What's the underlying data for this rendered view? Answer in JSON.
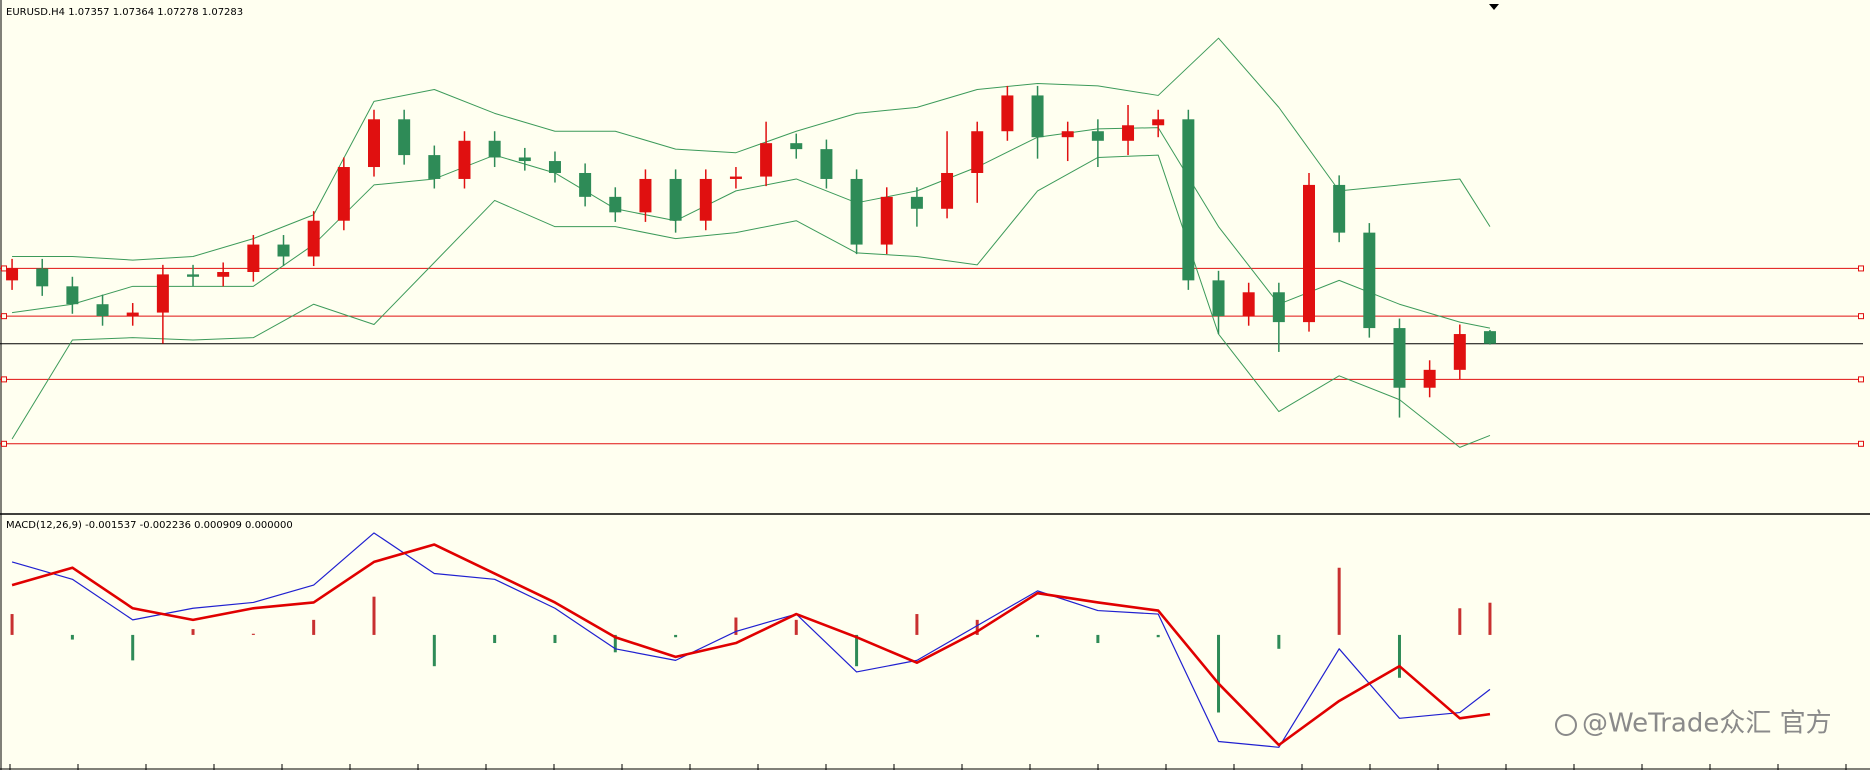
{
  "chart_data": [
    {
      "type": "candlestick",
      "title": "EURUSD.H4  1.07357 1.07364 1.07278 1.07283",
      "xlim": [
        -0.4,
        61.6
      ],
      "ylim": [
        1.0629,
        1.093
      ],
      "bull_color": "#e01010",
      "bear_color": "#2e8b57",
      "open": [
        1.07655,
        1.07725,
        1.0762,
        1.07515,
        1.07445,
        1.07466,
        1.0769,
        1.07676,
        1.07704,
        1.07865,
        1.07795,
        1.08005,
        1.0832,
        1.086,
        1.0839,
        1.0825,
        1.08474,
        1.08376,
        1.08355,
        1.08285,
        1.08145,
        1.08054,
        1.0825,
        1.08005,
        1.0825,
        1.08264,
        1.0846,
        1.08425,
        1.0825,
        1.07865,
        1.08145,
        1.08075,
        1.08285,
        1.0853,
        1.0874,
        1.08495,
        1.0853,
        1.08474,
        1.08565,
        1.086,
        1.07655,
        1.07445,
        1.07585,
        1.0741,
        1.08215,
        1.07935,
        1.07375,
        1.07025,
        1.0713,
        1.07357
      ],
      "high": [
        1.07781,
        1.07781,
        1.07676,
        1.07571,
        1.07522,
        1.07746,
        1.07746,
        1.0776,
        1.07921,
        1.07921,
        1.08061,
        1.08376,
        1.08656,
        1.08656,
        1.08446,
        1.0853,
        1.0853,
        1.08432,
        1.08411,
        1.08341,
        1.08201,
        1.08306,
        1.08306,
        1.08306,
        1.0832,
        1.08586,
        1.08516,
        1.08481,
        1.08306,
        1.08201,
        1.08201,
        1.0853,
        1.08586,
        1.08796,
        1.08796,
        1.08586,
        1.086,
        1.08684,
        1.08656,
        1.08656,
        1.07711,
        1.07641,
        1.07641,
        1.08285,
        1.08271,
        1.07991,
        1.07431,
        1.07186,
        1.07396,
        1.07364
      ],
      "low": [
        1.07599,
        1.07564,
        1.07459,
        1.07389,
        1.07389,
        1.07284,
        1.0762,
        1.0762,
        1.07648,
        1.07739,
        1.07739,
        1.07949,
        1.08264,
        1.08334,
        1.08194,
        1.08194,
        1.0832,
        1.08299,
        1.08229,
        1.08089,
        1.07998,
        1.07998,
        1.07935,
        1.07949,
        1.08194,
        1.08208,
        1.08369,
        1.08194,
        1.07809,
        1.07809,
        1.0797,
        1.08019,
        1.0811,
        1.08474,
        1.08369,
        1.08355,
        1.0832,
        1.0839,
        1.08495,
        1.07599,
        1.0734,
        1.07389,
        1.07235,
        1.07354,
        1.07879,
        1.07319,
        1.0685,
        1.06969,
        1.07074,
        1.07278
      ],
      "close": [
        1.07725,
        1.0762,
        1.07515,
        1.07445,
        1.07466,
        1.0769,
        1.07676,
        1.07704,
        1.07865,
        1.07795,
        1.08005,
        1.0832,
        1.086,
        1.0839,
        1.0825,
        1.08474,
        1.08376,
        1.08355,
        1.08285,
        1.08145,
        1.08054,
        1.0825,
        1.08005,
        1.0825,
        1.08264,
        1.0846,
        1.08425,
        1.0825,
        1.07865,
        1.08145,
        1.08075,
        1.08285,
        1.0853,
        1.0874,
        1.08495,
        1.0853,
        1.08474,
        1.08565,
        1.086,
        1.07655,
        1.07445,
        1.07585,
        1.0741,
        1.08215,
        1.07935,
        1.07375,
        1.07025,
        1.0713,
        1.0734,
        1.07283
      ],
      "bands": {
        "color": "#3c9a5a",
        "x": [
          0,
          2,
          4,
          6,
          8,
          10,
          12,
          14,
          16,
          18,
          20,
          22,
          24,
          26,
          28,
          30,
          32,
          34,
          36,
          38,
          40,
          42,
          44,
          46,
          48,
          49
        ],
        "upper": [
          1.07795,
          1.07795,
          1.07774,
          1.07795,
          1.079,
          1.0804,
          1.08705,
          1.08775,
          1.08635,
          1.0853,
          1.0853,
          1.08425,
          1.08404,
          1.0853,
          1.08635,
          1.0867,
          1.08775,
          1.0881,
          1.08796,
          1.0874,
          1.09076,
          1.0867,
          1.0818,
          1.08215,
          1.0825,
          1.0797
        ],
        "middle": [
          1.07466,
          1.07515,
          1.0762,
          1.0762,
          1.0762,
          1.07865,
          1.08215,
          1.0825,
          1.0839,
          1.08285,
          1.08075,
          1.08005,
          1.0818,
          1.0825,
          1.0811,
          1.0818,
          1.0832,
          1.08495,
          1.08544,
          1.08551,
          1.0797,
          1.07515,
          1.07655,
          1.07515,
          1.0741,
          1.07375
        ],
        "lower": [
          1.06724,
          1.07305,
          1.07319,
          1.07305,
          1.07319,
          1.07515,
          1.07396,
          1.0776,
          1.08124,
          1.0797,
          1.0797,
          1.079,
          1.07935,
          1.08005,
          1.07816,
          1.07795,
          1.07746,
          1.0818,
          1.08376,
          1.0839,
          1.0734,
          1.06885,
          1.07095,
          1.06955,
          1.06675,
          1.06745
        ]
      },
      "hlines": [
        {
          "value": 1.07725,
          "color": "#e01010"
        },
        {
          "value": 1.07445,
          "color": "#e01010"
        },
        {
          "value": 1.07074,
          "color": "#e01010"
        },
        {
          "value": 1.06696,
          "color": "#e01010"
        }
      ],
      "price_line": {
        "value": 1.07283,
        "color": "#000000"
      }
    },
    {
      "type": "macd",
      "title": "MACD(12,26,9) -0.001537 -0.002236 0.000909 0.000000",
      "xlim": [
        -0.4,
        61.6
      ],
      "ylim": [
        -0.0037,
        0.0033
      ],
      "x": [
        0,
        2,
        4,
        6,
        8,
        10,
        12,
        14,
        16,
        18,
        20,
        22,
        24,
        26,
        28,
        30,
        32,
        34,
        36,
        38,
        40,
        42,
        44,
        46,
        48,
        49
      ],
      "main": {
        "color": "#2020d0",
        "values": [
          0.00206,
          0.00157,
          0.000425,
          0.000752,
          0.000916,
          0.001406,
          0.002878,
          0.001733,
          0.00157,
          0.000752,
          -0.000392,
          -0.000719,
          9.8e-05,
          0.000589,
          -0.001046,
          -0.000719,
          0.000262,
          0.001243,
          0.000687,
          0.000589,
          -0.003008,
          -0.003172,
          -0.000392,
          -0.002354,
          -0.002191,
          -0.001537
        ]
      },
      "signal": {
        "color": "#e00000",
        "values": [
          0.001406,
          0.001897,
          0.000752,
          0.000425,
          0.000752,
          0.000916,
          0.00206,
          0.002551,
          0.001733,
          0.000916,
          -6.5e-05,
          -0.000621,
          -0.000229,
          0.000589,
          -6.5e-05,
          -0.000785,
          9.8e-05,
          0.001177,
          0.000916,
          0.000687,
          -0.001373,
          -0.003107,
          -0.001864,
          -0.000883,
          -0.002354,
          -0.002236
        ]
      },
      "histogram": {
        "pos_color": "#c83030",
        "neg_color": "#2e8b57",
        "values": [
          0.000589,
          -0.000131,
          -0.000719,
          0.000164,
          3.3e-05,
          0.000425,
          0.001079,
          -0.000883,
          -0.000229,
          -0.000229,
          -0.000491,
          -6.5e-05,
          0.000491,
          0.000425,
          -0.000883,
          0.000589,
          0.000425,
          -6.5e-05,
          -0.000229,
          -6.5e-05,
          -0.002191,
          -0.000392,
          0.001897,
          -0.00121,
          0.000752,
          0.000909
        ]
      }
    }
  ],
  "watermark": "@WeTrade众汇 官方"
}
